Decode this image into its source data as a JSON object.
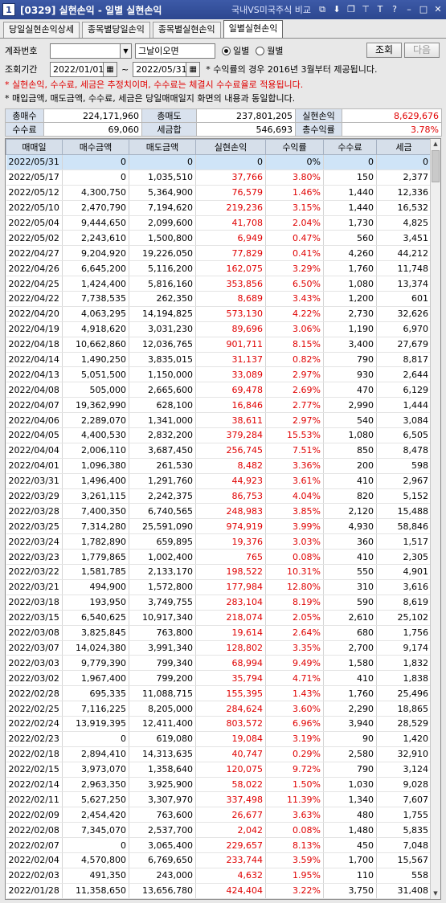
{
  "window": {
    "number": "1",
    "title": "[0329] 실현손익 - 일별 실현손익",
    "compare_link": "국내VS미국주식 비교"
  },
  "tabs": [
    {
      "label": "당일실현손익상세"
    },
    {
      "label": "종목별당일손익"
    },
    {
      "label": "종목별실현손익"
    },
    {
      "label": "일별실현손익"
    }
  ],
  "filters": {
    "account_label": "계좌번호",
    "account_value": "",
    "account_name": "그날이오면",
    "mode_daily": "일별",
    "mode_monthly": "월별",
    "period_label": "조회기간",
    "start_date": "2022/01/01",
    "tilde": "~",
    "end_date": "2022/05/31",
    "return_note": "* 수익률의 경우 2016년 3월부터 제공됩니다.",
    "search_button": "조회",
    "next_button": "다음"
  },
  "notes": {
    "red": "* 실현손익, 수수료, 세금은 추정치이며, 수수료는 체결시 수수료율로 적용됩니다.",
    "black": "* 매입금액, 매도금액, 수수료, 세금은 당일매매일지 화면의 내용과 동일합니다."
  },
  "summary": {
    "total_buy_label": "총매수",
    "total_buy": "224,171,960",
    "total_sell_label": "총매도",
    "total_sell": "237,801,205",
    "realized_label": "실현손익",
    "realized": "8,629,676",
    "fee_label": "수수료",
    "fee": "69,060",
    "tax_label": "세금합",
    "tax": "546,693",
    "total_return_label": "총수익률",
    "total_return": "3.78%"
  },
  "table": {
    "headers": [
      "매매일",
      "매수금액",
      "매도금액",
      "실현손익",
      "수익률",
      "수수료",
      "세금"
    ],
    "rows": [
      [
        "2022/05/31",
        "0",
        "0",
        "0",
        "0%",
        "0",
        "0"
      ],
      [
        "2022/05/17",
        "0",
        "1,035,510",
        "37,766",
        "3.80%",
        "150",
        "2,377"
      ],
      [
        "2022/05/12",
        "4,300,750",
        "5,364,900",
        "76,579",
        "1.46%",
        "1,440",
        "12,336"
      ],
      [
        "2022/05/10",
        "2,470,790",
        "7,194,620",
        "219,236",
        "3.15%",
        "1,440",
        "16,532"
      ],
      [
        "2022/05/04",
        "9,444,650",
        "2,099,600",
        "41,708",
        "2.04%",
        "1,730",
        "4,825"
      ],
      [
        "2022/05/02",
        "2,243,610",
        "1,500,800",
        "6,949",
        "0.47%",
        "560",
        "3,451"
      ],
      [
        "2022/04/27",
        "9,204,920",
        "19,226,050",
        "77,829",
        "0.41%",
        "4,260",
        "44,212"
      ],
      [
        "2022/04/26",
        "6,645,200",
        "5,116,200",
        "162,075",
        "3.29%",
        "1,760",
        "11,748"
      ],
      [
        "2022/04/25",
        "1,424,400",
        "5,816,160",
        "353,856",
        "6.50%",
        "1,080",
        "13,374"
      ],
      [
        "2022/04/22",
        "7,738,535",
        "262,350",
        "8,689",
        "3.43%",
        "1,200",
        "601"
      ],
      [
        "2022/04/20",
        "4,063,295",
        "14,194,825",
        "573,130",
        "4.22%",
        "2,730",
        "32,626"
      ],
      [
        "2022/04/19",
        "4,918,620",
        "3,031,230",
        "89,696",
        "3.06%",
        "1,190",
        "6,970"
      ],
      [
        "2022/04/18",
        "10,662,860",
        "12,036,765",
        "901,711",
        "8.15%",
        "3,400",
        "27,679"
      ],
      [
        "2022/04/14",
        "1,490,250",
        "3,835,015",
        "31,137",
        "0.82%",
        "790",
        "8,817"
      ],
      [
        "2022/04/13",
        "5,051,500",
        "1,150,000",
        "33,089",
        "2.97%",
        "930",
        "2,644"
      ],
      [
        "2022/04/08",
        "505,000",
        "2,665,600",
        "69,478",
        "2.69%",
        "470",
        "6,129"
      ],
      [
        "2022/04/07",
        "19,362,990",
        "628,100",
        "16,846",
        "2.77%",
        "2,990",
        "1,444"
      ],
      [
        "2022/04/06",
        "2,289,070",
        "1,341,000",
        "38,611",
        "2.97%",
        "540",
        "3,084"
      ],
      [
        "2022/04/05",
        "4,400,530",
        "2,832,200",
        "379,284",
        "15.53%",
        "1,080",
        "6,505"
      ],
      [
        "2022/04/04",
        "2,006,110",
        "3,687,450",
        "256,745",
        "7.51%",
        "850",
        "8,478"
      ],
      [
        "2022/04/01",
        "1,096,380",
        "261,530",
        "8,482",
        "3.36%",
        "200",
        "598"
      ],
      [
        "2022/03/31",
        "1,496,400",
        "1,291,760",
        "44,923",
        "3.61%",
        "410",
        "2,967"
      ],
      [
        "2022/03/29",
        "3,261,115",
        "2,242,375",
        "86,753",
        "4.04%",
        "820",
        "5,152"
      ],
      [
        "2022/03/28",
        "7,400,350",
        "6,740,565",
        "248,983",
        "3.85%",
        "2,120",
        "15,488"
      ],
      [
        "2022/03/25",
        "7,314,280",
        "25,591,090",
        "974,919",
        "3.99%",
        "4,930",
        "58,846"
      ],
      [
        "2022/03/24",
        "1,782,890",
        "659,895",
        "19,376",
        "3.03%",
        "360",
        "1,517"
      ],
      [
        "2022/03/23",
        "1,779,865",
        "1,002,400",
        "765",
        "0.08%",
        "410",
        "2,305"
      ],
      [
        "2022/03/22",
        "1,581,785",
        "2,133,170",
        "198,522",
        "10.31%",
        "550",
        "4,901"
      ],
      [
        "2022/03/21",
        "494,900",
        "1,572,800",
        "177,984",
        "12.80%",
        "310",
        "3,616"
      ],
      [
        "2022/03/18",
        "193,950",
        "3,749,755",
        "283,104",
        "8.19%",
        "590",
        "8,619"
      ],
      [
        "2022/03/15",
        "6,540,625",
        "10,917,340",
        "218,074",
        "2.05%",
        "2,610",
        "25,102"
      ],
      [
        "2022/03/08",
        "3,825,845",
        "763,800",
        "19,614",
        "2.64%",
        "680",
        "1,756"
      ],
      [
        "2022/03/07",
        "14,024,380",
        "3,991,340",
        "128,802",
        "3.35%",
        "2,700",
        "9,174"
      ],
      [
        "2022/03/03",
        "9,779,390",
        "799,340",
        "68,994",
        "9.49%",
        "1,580",
        "1,832"
      ],
      [
        "2022/03/02",
        "1,967,400",
        "799,200",
        "35,794",
        "4.71%",
        "410",
        "1,838"
      ],
      [
        "2022/02/28",
        "695,335",
        "11,088,715",
        "155,395",
        "1.43%",
        "1,760",
        "25,496"
      ],
      [
        "2022/02/25",
        "7,116,225",
        "8,205,000",
        "284,624",
        "3.60%",
        "2,290",
        "18,865"
      ],
      [
        "2022/02/24",
        "13,919,395",
        "12,411,400",
        "803,572",
        "6.96%",
        "3,940",
        "28,529"
      ],
      [
        "2022/02/23",
        "0",
        "619,080",
        "19,084",
        "3.19%",
        "90",
        "1,420"
      ],
      [
        "2022/02/18",
        "2,894,410",
        "14,313,635",
        "40,747",
        "0.29%",
        "2,580",
        "32,910"
      ],
      [
        "2022/02/15",
        "3,973,070",
        "1,358,640",
        "120,075",
        "9.72%",
        "790",
        "3,124"
      ],
      [
        "2022/02/14",
        "2,963,350",
        "3,925,900",
        "58,022",
        "1.50%",
        "1,030",
        "9,028"
      ],
      [
        "2022/02/11",
        "5,627,250",
        "3,307,970",
        "337,498",
        "11.39%",
        "1,340",
        "7,607"
      ],
      [
        "2022/02/09",
        "2,454,420",
        "763,600",
        "26,677",
        "3.63%",
        "480",
        "1,755"
      ],
      [
        "2022/02/08",
        "7,345,070",
        "2,537,700",
        "2,042",
        "0.08%",
        "1,480",
        "5,835"
      ],
      [
        "2022/02/07",
        "0",
        "3,065,400",
        "229,657",
        "8.13%",
        "450",
        "7,048"
      ],
      [
        "2022/02/04",
        "4,570,800",
        "6,769,650",
        "233,744",
        "3.59%",
        "1,700",
        "15,567"
      ],
      [
        "2022/02/03",
        "491,350",
        "243,000",
        "4,632",
        "1.95%",
        "110",
        "558"
      ],
      [
        "2022/01/28",
        "11,358,650",
        "13,656,780",
        "424,404",
        "3.22%",
        "3,750",
        "31,408"
      ]
    ]
  },
  "colors": {
    "positive": "#e00000",
    "selected_row": "#cfe4f7",
    "header_bg": "#d6dfea"
  },
  "icons": [
    "link-icon",
    "pin-icon",
    "copy-icon",
    "pin-icon",
    "font-icon",
    "help-icon",
    "minimize-icon",
    "maximize-icon",
    "close-icon"
  ]
}
